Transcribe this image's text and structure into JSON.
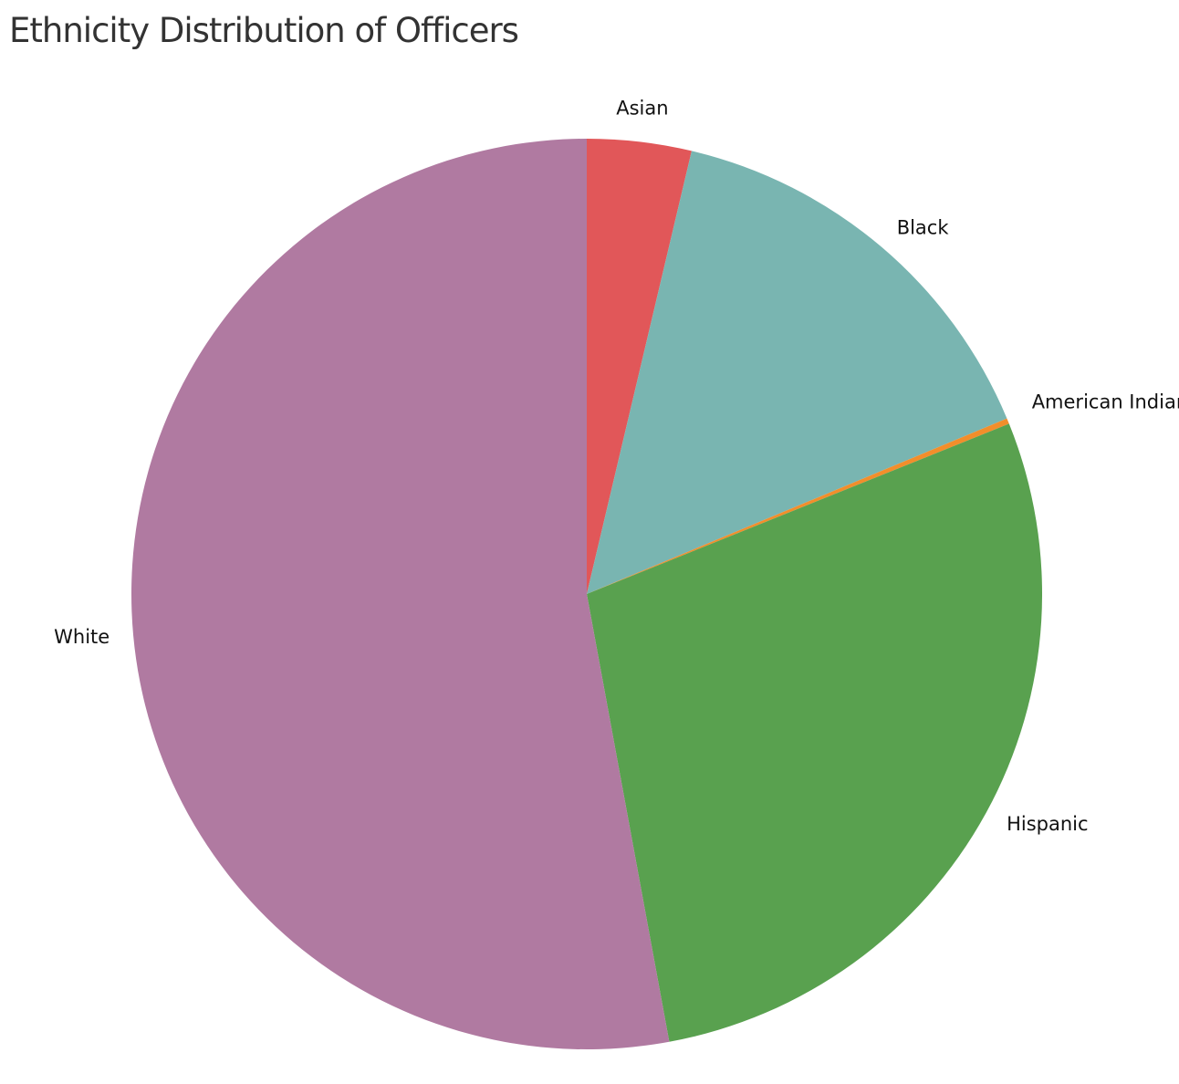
{
  "chart_data": {
    "type": "pie",
    "title": "Ethnicity Distribution of Officers",
    "start": "12 o'clock",
    "direction": "clockwise",
    "slices": [
      {
        "label": "Asian",
        "value": 3.7,
        "color": "#e15759"
      },
      {
        "label": "Black",
        "value": 15.0,
        "color": "#79b5b1"
      },
      {
        "label": "American Indian",
        "value": 0.2,
        "color": "#f28e2b"
      },
      {
        "label": "Hispanic",
        "value": 28.2,
        "color": "#59a14f"
      },
      {
        "label": "White",
        "value": 52.9,
        "color": "#b07aa1"
      }
    ]
  }
}
